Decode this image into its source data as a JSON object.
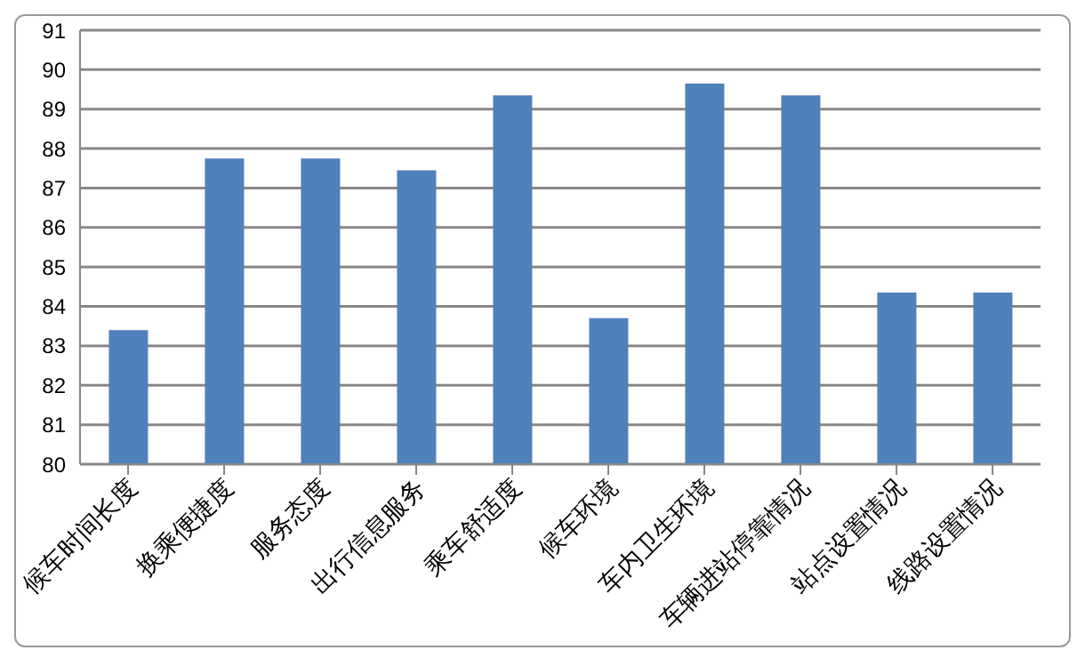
{
  "chart_data": {
    "type": "bar",
    "categories": [
      "候车时间长度",
      "换乘便捷度",
      "服务态度",
      "出行信息服务",
      "乘车舒适度",
      "候车环境",
      "车内卫生环境",
      "车辆进站停靠情况",
      "站点设置情况",
      "线路设置情况"
    ],
    "values": [
      83.4,
      87.75,
      87.75,
      87.45,
      89.35,
      83.7,
      89.65,
      89.35,
      84.35,
      84.35
    ],
    "color": "#4f81bd",
    "ylim": [
      80,
      91
    ],
    "yticks": [
      80,
      81,
      82,
      83,
      84,
      85,
      86,
      87,
      88,
      89,
      90,
      91
    ],
    "grid": "y",
    "legend": false
  }
}
